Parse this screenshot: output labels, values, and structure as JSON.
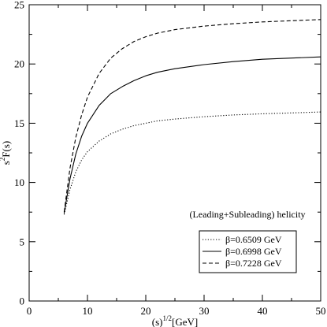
{
  "chart_data": {
    "type": "line",
    "title": "",
    "xlabel_base": "(s)",
    "xlabel_sup": "1/2",
    "xlabel_unit": "[GeV]",
    "ylabel_base": "s",
    "ylabel_sup": "2",
    "ylabel_rest": "F(s)",
    "xlim": [
      0,
      50
    ],
    "ylim": [
      0,
      25
    ],
    "xticks": [
      0,
      10,
      20,
      30,
      40,
      50
    ],
    "yticks": [
      0,
      5,
      10,
      15,
      20,
      25
    ],
    "xtick_labels": [
      "0",
      "10",
      "20",
      "30",
      "40",
      "50"
    ],
    "ytick_labels": [
      "0",
      "5",
      "10",
      "15",
      "20",
      "25"
    ],
    "grid": false,
    "legend_placement": "bottom-right",
    "legend_header": "(Leading+Subleading) helicity",
    "series": [
      {
        "name": "β=0.6509 GeV",
        "line_style": "dotted",
        "color": "#000000",
        "x": [
          6,
          7,
          8,
          9,
          10,
          12,
          14,
          16,
          18,
          20,
          22,
          25,
          30,
          35,
          40,
          45,
          50
        ],
        "y": [
          7.3,
          9.4,
          10.9,
          11.9,
          12.6,
          13.5,
          14.1,
          14.5,
          14.8,
          15.0,
          15.2,
          15.35,
          15.55,
          15.7,
          15.8,
          15.87,
          15.95
        ]
      },
      {
        "name": "β=0.6998 GeV",
        "line_style": "solid",
        "color": "#000000",
        "x": [
          6,
          7,
          8,
          9,
          10,
          12,
          14,
          16,
          18,
          20,
          22,
          25,
          30,
          35,
          40,
          45,
          50
        ],
        "y": [
          7.4,
          10.3,
          12.4,
          13.9,
          15.0,
          16.5,
          17.5,
          18.1,
          18.6,
          19.0,
          19.3,
          19.6,
          19.95,
          20.2,
          20.4,
          20.5,
          20.6
        ]
      },
      {
        "name": "β=0.7228 GeV",
        "line_style": "dashed",
        "color": "#000000",
        "x": [
          6,
          7,
          8,
          9,
          10,
          12,
          14,
          16,
          18,
          20,
          22,
          25,
          30,
          35,
          40,
          45,
          50
        ],
        "y": [
          7.5,
          11.2,
          13.8,
          15.7,
          17.2,
          19.2,
          20.5,
          21.3,
          21.9,
          22.3,
          22.6,
          22.9,
          23.2,
          23.4,
          23.55,
          23.65,
          23.75
        ]
      }
    ]
  }
}
